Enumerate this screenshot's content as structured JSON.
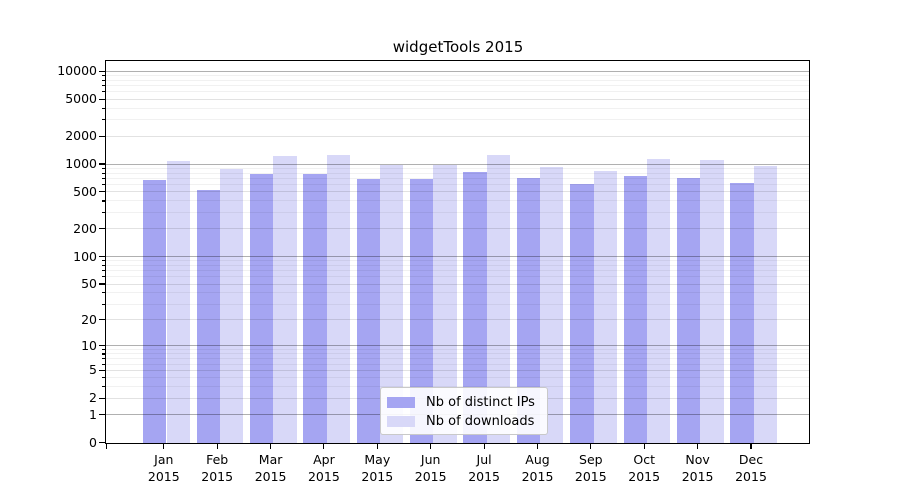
{
  "chart_data": {
    "type": "bar",
    "title": "widgetTools 2015",
    "xlabel": "",
    "ylabel": "",
    "categories": [
      {
        "month": "Jan",
        "year": "2015"
      },
      {
        "month": "Feb",
        "year": "2015"
      },
      {
        "month": "Mar",
        "year": "2015"
      },
      {
        "month": "Apr",
        "year": "2015"
      },
      {
        "month": "May",
        "year": "2015"
      },
      {
        "month": "Jun",
        "year": "2015"
      },
      {
        "month": "Jul",
        "year": "2015"
      },
      {
        "month": "Aug",
        "year": "2015"
      },
      {
        "month": "Sep",
        "year": "2015"
      },
      {
        "month": "Oct",
        "year": "2015"
      },
      {
        "month": "Nov",
        "year": "2015"
      },
      {
        "month": "Dec",
        "year": "2015"
      }
    ],
    "series": [
      {
        "name": "Nb of distinct IPs",
        "color": "#a5a5f2",
        "values": [
          680,
          530,
          795,
          800,
          700,
          690,
          840,
          720,
          620,
          745,
          720,
          640
        ]
      },
      {
        "name": "Nb of downloads",
        "color": "#d8d8f8",
        "values": [
          1090,
          905,
          1250,
          1260,
          1000,
          980,
          1265,
          935,
          850,
          1150,
          1125,
          975
        ]
      }
    ],
    "yscale": "log10(value+1)",
    "ylim": [
      0,
      12730
    ],
    "yticks": [
      0,
      1,
      2,
      5,
      10,
      20,
      50,
      100,
      200,
      500,
      1000,
      2000,
      5000,
      10000
    ],
    "grid": true,
    "legend_position": "lower center",
    "grid_colors": {
      "decade": "rgba(0,0,0,0.31)",
      "labeled": "rgba(0,0,0,0.115)",
      "minor": "rgba(0,0,0,0.055)"
    }
  }
}
